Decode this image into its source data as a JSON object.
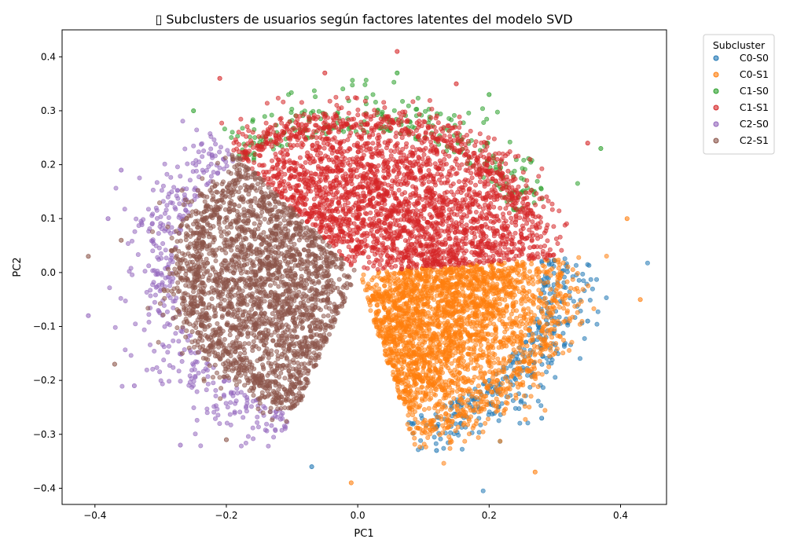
{
  "chart_data": {
    "type": "scatter",
    "title": "▯ Subclusters de usuarios según factores latentes del modelo SVD",
    "xlabel": "PC1",
    "ylabel": "PC2",
    "xlim": [
      -0.45,
      0.47
    ],
    "ylim": [
      -0.43,
      0.45
    ],
    "xticks": [
      -0.4,
      -0.2,
      0.0,
      0.2,
      0.4
    ],
    "xtick_labels": [
      "−0.4",
      "−0.2",
      "0.0",
      "0.2",
      "0.4"
    ],
    "yticks": [
      -0.4,
      -0.3,
      -0.2,
      -0.1,
      0.0,
      0.1,
      0.2,
      0.3,
      0.4
    ],
    "ytick_labels": [
      "−0.4",
      "−0.3",
      "−0.2",
      "−0.1",
      "0.0",
      "0.1",
      "0.2",
      "0.3",
      "0.4"
    ],
    "grid": false,
    "legend": {
      "title": "Subcluster",
      "placement": "outside-top-right"
    },
    "series": [
      {
        "name": "C0-S0",
        "color": "#1f77b4",
        "angle_range_deg": [
          -75,
          5
        ],
        "radius": 0.3,
        "points": [
          [
            0.12,
            -0.33
          ],
          [
            -0.07,
            -0.36
          ],
          [
            0.28,
            -0.27
          ],
          [
            0.35,
            -0.09
          ],
          [
            0.2,
            -0.2
          ]
        ]
      },
      {
        "name": "C0-S1",
        "color": "#ff7f0e",
        "angle_range_deg": [
          -75,
          5
        ],
        "radius": 0.3,
        "points": [
          [
            0.43,
            -0.05
          ],
          [
            0.41,
            0.1
          ],
          [
            0.27,
            -0.37
          ],
          [
            -0.01,
            -0.39
          ],
          [
            0.3,
            -0.15
          ]
        ]
      },
      {
        "name": "C1-S0",
        "color": "#2ca02c",
        "angle_range_deg": [
          25,
          130
        ],
        "radius": 0.28,
        "points": [
          [
            0.06,
            0.37
          ],
          [
            0.37,
            0.23
          ],
          [
            -0.25,
            0.3
          ],
          [
            0.2,
            0.33
          ]
        ]
      },
      {
        "name": "C1-S1",
        "color": "#d62728",
        "angle_range_deg": [
          5,
          130
        ],
        "radius": 0.27,
        "points": [
          [
            0.06,
            0.41
          ],
          [
            -0.21,
            0.36
          ],
          [
            0.35,
            0.24
          ],
          [
            0.15,
            0.35
          ],
          [
            -0.05,
            0.37
          ]
        ]
      },
      {
        "name": "C2-S0",
        "color": "#9467bd",
        "angle_range_deg": [
          130,
          250
        ],
        "radius": 0.3,
        "points": [
          [
            -0.41,
            -0.08
          ],
          [
            -0.36,
            0.19
          ],
          [
            -0.27,
            -0.32
          ],
          [
            -0.34,
            -0.21
          ],
          [
            -0.38,
            0.1
          ]
        ]
      },
      {
        "name": "C2-S1",
        "color": "#8c564b",
        "angle_range_deg": [
          130,
          250
        ],
        "radius": 0.24,
        "points": [
          [
            -0.41,
            0.03
          ],
          [
            -0.37,
            -0.17
          ],
          [
            -0.2,
            -0.31
          ],
          [
            -0.36,
            0.06
          ]
        ]
      }
    ]
  }
}
